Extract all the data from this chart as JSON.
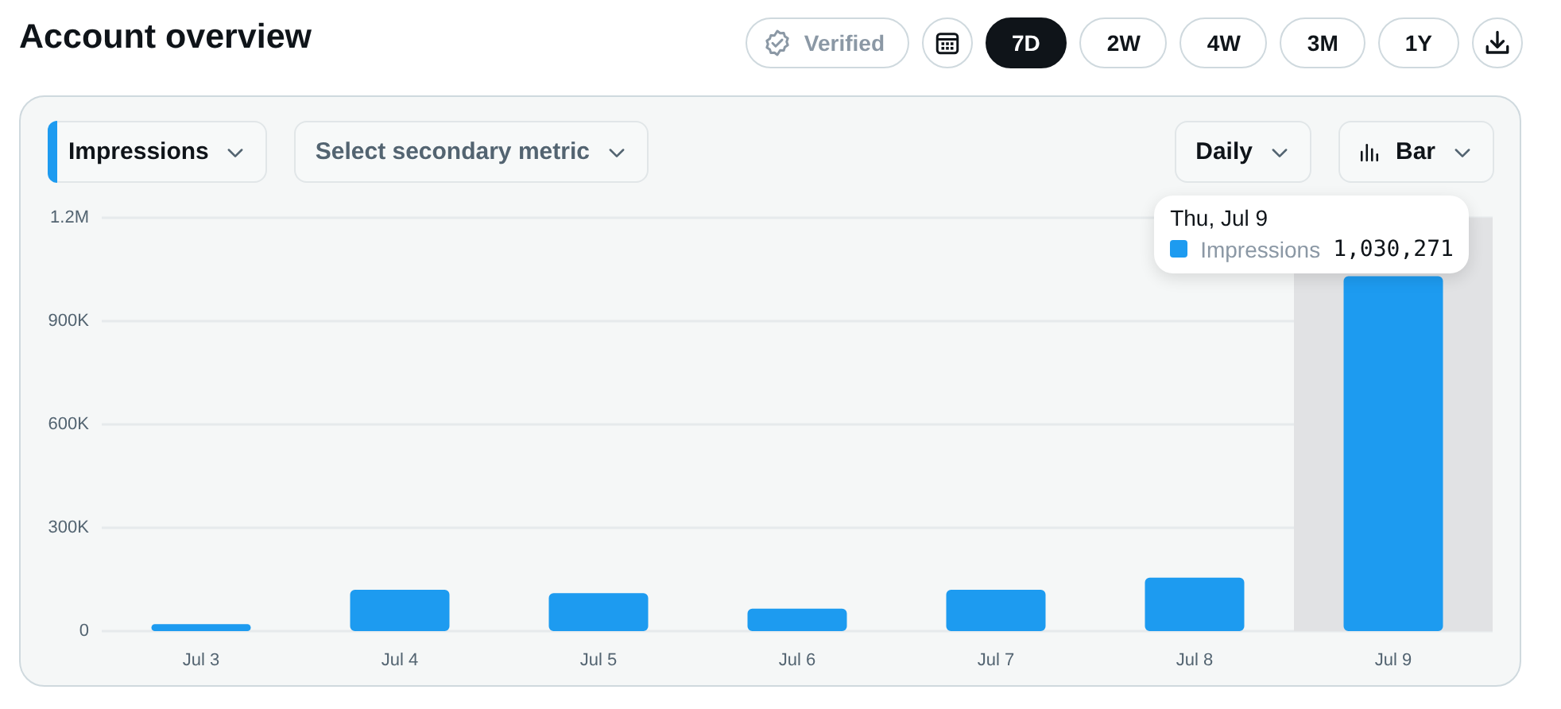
{
  "chart_data": {
    "type": "bar",
    "title": "Account overview",
    "categories": [
      "Jul 3",
      "Jul 4",
      "Jul 5",
      "Jul 6",
      "Jul 7",
      "Jul 8",
      "Jul 9"
    ],
    "series": [
      {
        "name": "Impressions",
        "color": "#1d9bf0",
        "values": [
          20000,
          120000,
          110000,
          65000,
          120000,
          155000,
          1030271
        ],
        "value_labels": [
          null,
          null,
          null,
          null,
          null,
          null,
          "1,030,271"
        ]
      }
    ],
    "ylim": [
      0,
      1200000
    ],
    "yticks": [
      0,
      {
        "value": 300000,
        "label": "300K"
      },
      {
        "value": 600000,
        "label": "600K"
      },
      {
        "value": 900000,
        "label": "900K"
      },
      {
        "value": 1200000,
        "label": "1.2M"
      }
    ],
    "grid": "y",
    "bands": [
      {
        "axis": "x",
        "from": "Jul 9",
        "to": "Jul 9",
        "color": "#e1e2e4"
      }
    ],
    "annotations": [
      "Verified",
      "7D",
      "2W",
      "4W",
      "3M",
      "1Y",
      "Impressions",
      "Select secondary metric",
      "Daily",
      "Bar",
      "Thu, Jul 9"
    ]
  }
}
